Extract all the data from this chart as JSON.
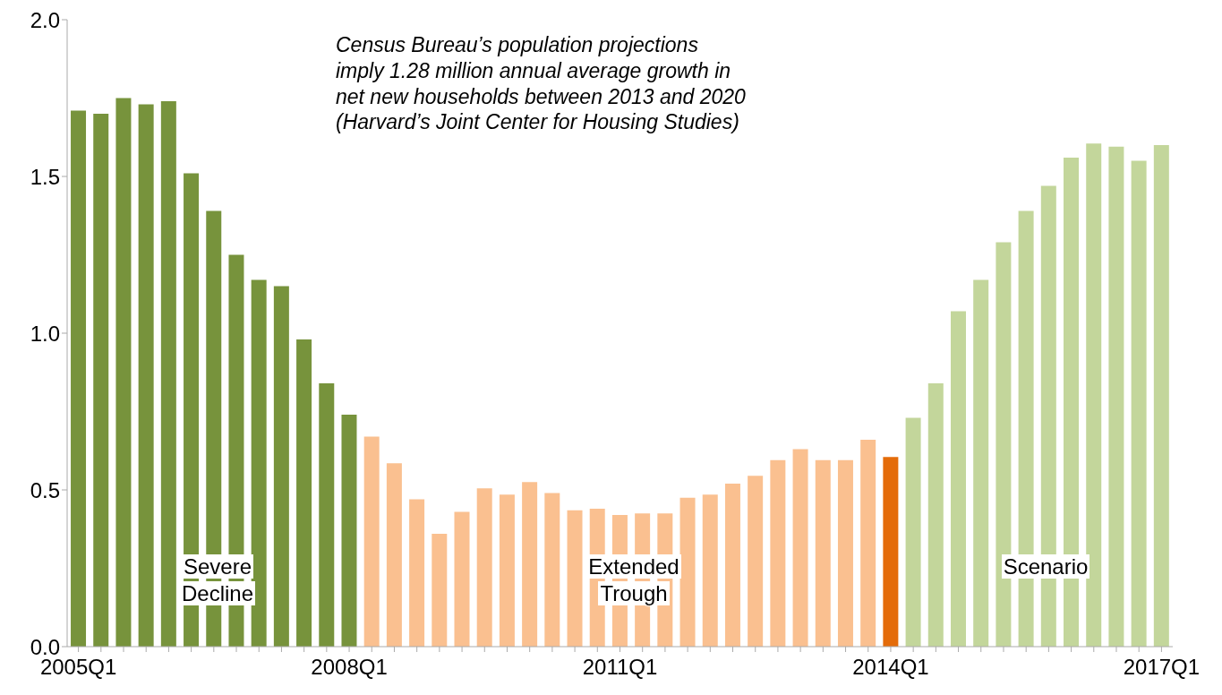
{
  "chart_data": {
    "type": "bar",
    "categories": [
      "2005Q1",
      null,
      null,
      null,
      null,
      null,
      null,
      null,
      null,
      null,
      null,
      null,
      "2008Q1",
      null,
      null,
      null,
      null,
      null,
      null,
      null,
      null,
      null,
      null,
      null,
      "2011Q1",
      null,
      null,
      null,
      null,
      null,
      null,
      null,
      null,
      null,
      null,
      null,
      "2014Q1",
      null,
      null,
      null,
      null,
      null,
      null,
      null,
      null,
      null,
      null,
      null,
      "2017Q1"
    ],
    "values": [
      1.71,
      1.7,
      1.75,
      1.73,
      1.74,
      1.51,
      1.39,
      1.25,
      1.17,
      1.15,
      0.98,
      0.84,
      0.74,
      0.67,
      0.585,
      0.47,
      0.36,
      0.43,
      0.505,
      0.485,
      0.525,
      0.49,
      0.435,
      0.44,
      0.42,
      0.425,
      0.425,
      0.475,
      0.485,
      0.52,
      0.545,
      0.595,
      0.63,
      0.595,
      0.595,
      0.66,
      0.605,
      0.73,
      0.84,
      1.07,
      1.17,
      1.29,
      1.39,
      1.47,
      1.56,
      1.605,
      1.595,
      1.55,
      1.6
    ],
    "colors": [
      "#77933c",
      "#77933c",
      "#77933c",
      "#77933c",
      "#77933c",
      "#77933c",
      "#77933c",
      "#77933c",
      "#77933c",
      "#77933c",
      "#77933c",
      "#77933c",
      "#77933c",
      "#fac090",
      "#fac090",
      "#fac090",
      "#fac090",
      "#fac090",
      "#fac090",
      "#fac090",
      "#fac090",
      "#fac090",
      "#fac090",
      "#fac090",
      "#fac090",
      "#fac090",
      "#fac090",
      "#fac090",
      "#fac090",
      "#fac090",
      "#fac090",
      "#fac090",
      "#fac090",
      "#fac090",
      "#fac090",
      "#fac090",
      "#e46c0a",
      "#c3d69b",
      "#c3d69b",
      "#c3d69b",
      "#c3d69b",
      "#c3d69b",
      "#c3d69b",
      "#c3d69b",
      "#c3d69b",
      "#c3d69b",
      "#c3d69b",
      "#c3d69b",
      "#c3d69b"
    ],
    "ylim": [
      0,
      2
    ],
    "yticks": [
      {
        "value": 0,
        "label": "0.0"
      },
      {
        "value": 0.5,
        "label": "0.5"
      },
      {
        "value": 1,
        "label": "1.0"
      },
      {
        "value": 1.5,
        "label": "1.5"
      },
      {
        "value": 2,
        "label": "2.0"
      }
    ],
    "grid": false,
    "legend": false,
    "annotations": [
      "Census Bureau’s population projections\nimply 1.28 million annual average growth in\nnet new households between 2013 and 2020\n(Harvard’s Joint Center for Housing Studies)",
      "Severe\nDecline",
      "Extended\nTrough",
      "Scenario"
    ]
  }
}
